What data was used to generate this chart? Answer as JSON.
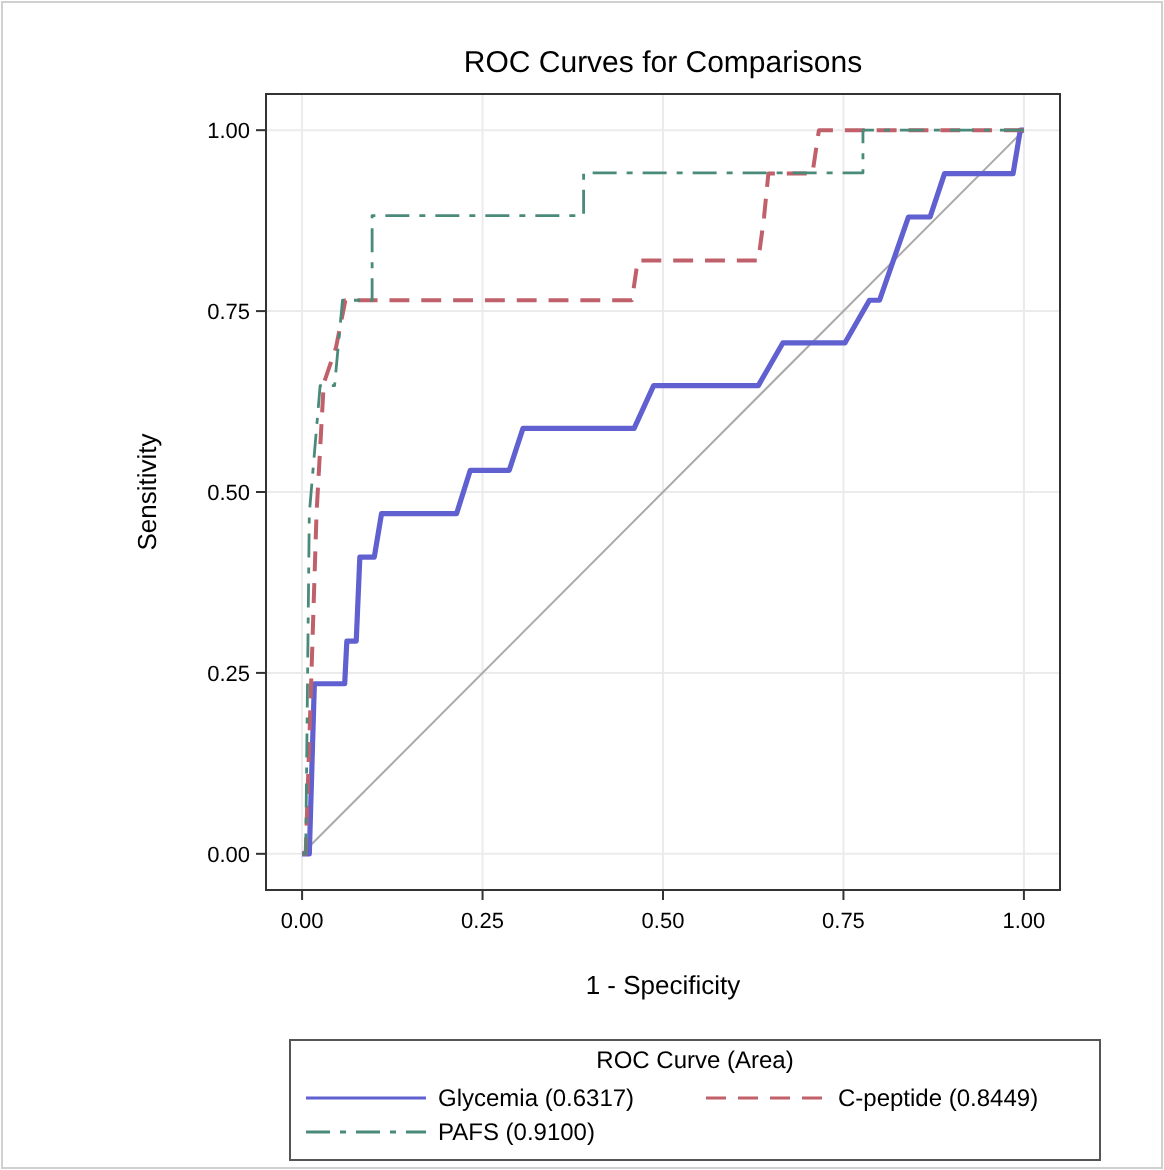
{
  "chart_data": {
    "type": "line",
    "title": "ROC Curves for Comparisons",
    "xlabel": "1 - Specificity",
    "ylabel": "Sensitivity",
    "legend_title": "ROC Curve (Area)",
    "legend": "bottom",
    "grid": true,
    "marker": "none",
    "xlim": [
      -0.05,
      1.05
    ],
    "ylim": [
      -0.05,
      1.05
    ],
    "xticks": [
      {
        "value": 0,
        "label": "0.00"
      },
      {
        "value": 0.25,
        "label": "0.25"
      },
      {
        "value": 0.5,
        "label": "0.50"
      },
      {
        "value": 0.75,
        "label": "0.75"
      },
      {
        "value": 1,
        "label": "1.00"
      }
    ],
    "yticks": [
      {
        "value": 0,
        "label": "0.00"
      },
      {
        "value": 0.25,
        "label": "0.25"
      },
      {
        "value": 0.5,
        "label": "0.50"
      },
      {
        "value": 0.75,
        "label": "0.75"
      },
      {
        "value": 1,
        "label": "1.00"
      }
    ],
    "series": [
      {
        "color": "#aaaaaa",
        "line_style": "solid",
        "x": [
          0,
          1
        ],
        "values": [
          0,
          1
        ]
      },
      {
        "name": "Glycemia (0.6317)",
        "color": "#6060d0",
        "line_style": "solid",
        "x": [
          0,
          0.01,
          0.017,
          0.059,
          0.062,
          0.075,
          0.08,
          0.1,
          0.11,
          0.214,
          0.233,
          0.287,
          0.306,
          0.46,
          0.487,
          0.632,
          0.666,
          0.752,
          0.786,
          0.8,
          0.84,
          0.87,
          0.89,
          0.985,
          0.995,
          1
        ],
        "values": [
          0,
          0,
          0.235,
          0.235,
          0.294,
          0.294,
          0.41,
          0.41,
          0.47,
          0.47,
          0.53,
          0.53,
          0.588,
          0.588,
          0.647,
          0.647,
          0.706,
          0.706,
          0.765,
          0.765,
          0.88,
          0.88,
          0.94,
          0.94,
          1,
          1
        ]
      },
      {
        "name": "C-peptide (0.8449)",
        "color": "#c0606a",
        "line_style": "dashed",
        "x": [
          0,
          0.005,
          0.02,
          0.03,
          0.047,
          0.06,
          0.457,
          0.465,
          0.632,
          0.64,
          0.646,
          0.707,
          0.716,
          1
        ],
        "values": [
          0,
          0,
          0.47,
          0.65,
          0.7,
          0.765,
          0.765,
          0.82,
          0.82,
          0.88,
          0.94,
          0.94,
          1,
          1
        ]
      },
      {
        "name": "PAFS (0.9100)",
        "color": "#4a8a7a",
        "line_style": "dashdot",
        "x": [
          0,
          0.005,
          0.01,
          0.025,
          0.045,
          0.056,
          0.097,
          0.097,
          0.39,
          0.39,
          0.777,
          0.777,
          1
        ],
        "values": [
          0,
          0,
          0.47,
          0.647,
          0.647,
          0.765,
          0.765,
          0.882,
          0.882,
          0.941,
          0.941,
          1,
          1
        ]
      }
    ]
  }
}
